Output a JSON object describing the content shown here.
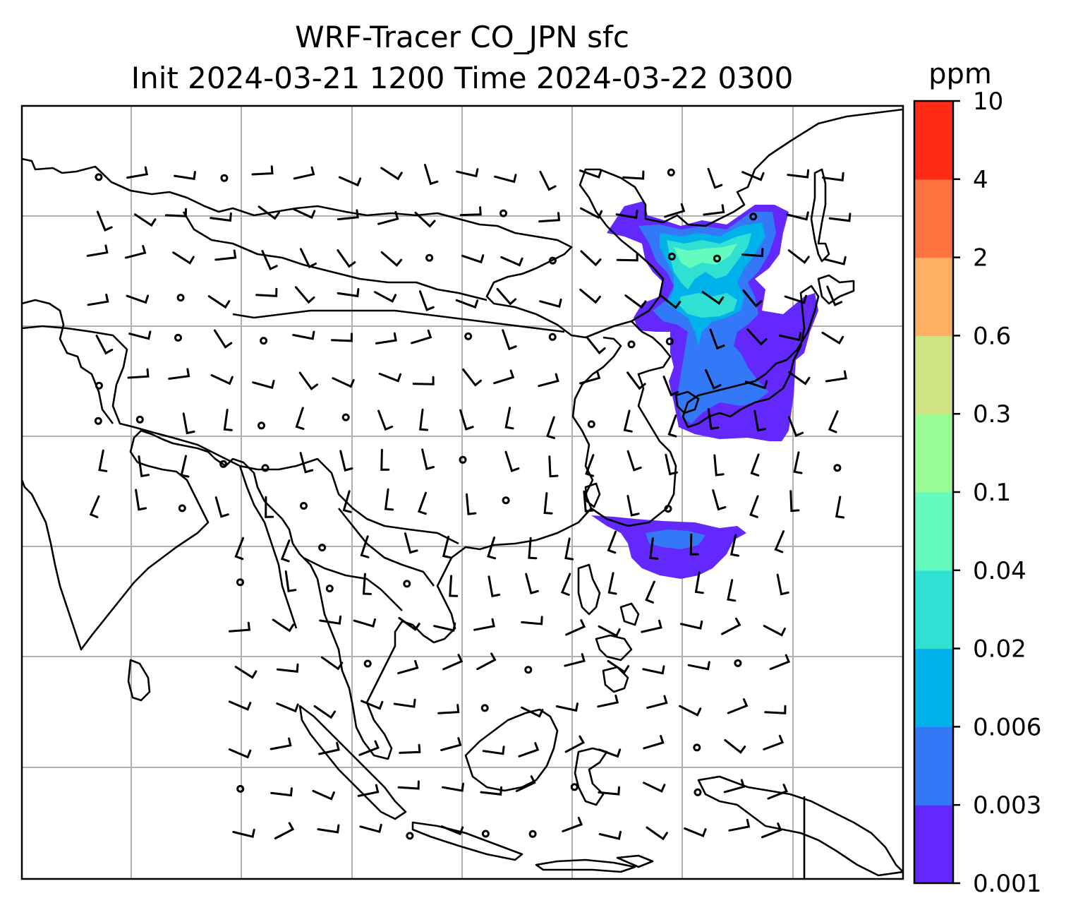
{
  "title_line1": "WRF-Tracer CO_JPN sfc",
  "title_line2": "Init 2024-03-21 1200 Time 2024-03-22 0300",
  "colorbar": {
    "unit": "ppm",
    "levels": [
      "0.001",
      "0.003",
      "0.006",
      "0.02",
      "0.04",
      "0.1",
      "0.3",
      "0.6",
      "2",
      "4",
      "10"
    ],
    "colors": [
      "#6329fc",
      "#3378f6",
      "#00b2ea",
      "#2fe0d3",
      "#66fbbe",
      "#99fb93",
      "#cfe385",
      "#fdb062",
      "#ff7340",
      "#ff2b17"
    ]
  },
  "map": {
    "field": "CO tracer concentration",
    "grid_lines": true,
    "coastline_color": "#000000",
    "grid_color": "#b0b0b0"
  }
}
